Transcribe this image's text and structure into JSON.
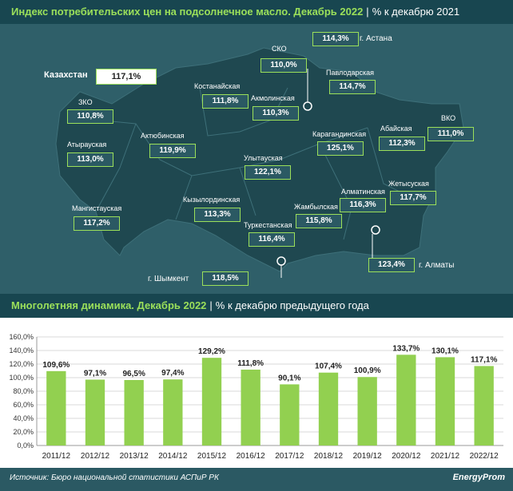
{
  "header_map": {
    "title": "Индекс потребительских цен на подсолнечное масло. Декабрь 2022",
    "subtitle": "% к декабрю 2021"
  },
  "header_chart": {
    "title": "Многолетняя динамика. Декабрь 2022",
    "subtitle": "% к декабрю предыдущего года"
  },
  "kazakhstan": {
    "label": "Казахстан",
    "value": "117,1%"
  },
  "regions": [
    {
      "name": "СКО",
      "value": "110,0%"
    },
    {
      "name": "г. Астана",
      "value": "114,3%"
    },
    {
      "name": "Павлодарская",
      "value": "114,7%"
    },
    {
      "name": "Костанайская",
      "value": "111,8%"
    },
    {
      "name": "Акмолинская",
      "value": "110,3%"
    },
    {
      "name": "ЗКО",
      "value": "110,8%"
    },
    {
      "name": "ВКО",
      "value": "111,0%"
    },
    {
      "name": "Абайская",
      "value": "112,3%"
    },
    {
      "name": "Актюбинская",
      "value": "119,9%"
    },
    {
      "name": "Атырауская",
      "value": "113,0%"
    },
    {
      "name": "Карагандинская",
      "value": "125,1%"
    },
    {
      "name": "Улытауская",
      "value": "122,1%"
    },
    {
      "name": "Жетысуская",
      "value": "117,7%"
    },
    {
      "name": "Алматинская",
      "value": "116,3%"
    },
    {
      "name": "Мангистауская",
      "value": "117,2%"
    },
    {
      "name": "Кызылординская",
      "value": "113,3%"
    },
    {
      "name": "Жамбылская",
      "value": "115,8%"
    },
    {
      "name": "Туркестанская",
      "value": "116,4%"
    },
    {
      "name": "г. Алматы",
      "value": "123,4%"
    },
    {
      "name": "г. Шымкент",
      "value": "118,5%"
    }
  ],
  "chart_data": {
    "type": "bar",
    "categories": [
      "2011/12",
      "2012/12",
      "2013/12",
      "2014/12",
      "2015/12",
      "2016/12",
      "2017/12",
      "2018/12",
      "2019/12",
      "2020/12",
      "2021/12",
      "2022/12"
    ],
    "values": [
      109.6,
      97.1,
      96.5,
      97.4,
      129.2,
      111.8,
      90.1,
      107.4,
      100.9,
      133.7,
      130.1,
      117.1
    ],
    "value_labels": [
      "109,6%",
      "97,1%",
      "96,5%",
      "97,4%",
      "129,2%",
      "111,8%",
      "90,1%",
      "107,4%",
      "100,9%",
      "133,7%",
      "130,1%",
      "117,1%"
    ],
    "yticks": [
      0,
      20,
      40,
      60,
      80,
      100,
      120,
      140,
      160
    ],
    "ytick_labels": [
      "0,0%",
      "20,0%",
      "40,0%",
      "60,0%",
      "80,0%",
      "100,0%",
      "120,0%",
      "140,0%",
      "160,0%"
    ],
    "ylim": [
      0,
      160
    ],
    "grid": true,
    "bar_color": "#92d050"
  },
  "footer": {
    "source": "Источник: Бюро национальной статистики АСПиР РК",
    "logo": "EnergyProm"
  }
}
